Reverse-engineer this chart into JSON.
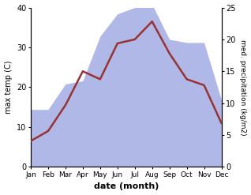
{
  "months": [
    "Jan",
    "Feb",
    "Mar",
    "Apr",
    "May",
    "Jun",
    "Jul",
    "Aug",
    "Sep",
    "Oct",
    "Nov",
    "Dec"
  ],
  "month_indices": [
    0,
    1,
    2,
    3,
    4,
    5,
    6,
    7,
    8,
    9,
    10,
    11
  ],
  "temp": [
    6.5,
    9.0,
    15.5,
    24.0,
    22.0,
    31.0,
    32.0,
    36.5,
    28.5,
    22.0,
    20.5,
    11.0
  ],
  "precip": [
    9.0,
    9.0,
    13.0,
    13.5,
    20.5,
    24.0,
    25.0,
    25.5,
    20.0,
    19.5,
    19.5,
    10.5
  ],
  "temp_color": "#993333",
  "precip_color_fill": "#b0b8e8",
  "left_ylabel": "max temp (C)",
  "right_ylabel": "med. precipitation (kg/m2)",
  "xlabel": "date (month)",
  "ylim_left": [
    0,
    40
  ],
  "ylim_right": [
    0,
    25
  ],
  "yticks_left": [
    0,
    10,
    20,
    30,
    40
  ],
  "yticks_right": [
    0,
    5,
    10,
    15,
    20,
    25
  ],
  "bg_color": "#ffffff",
  "line_width": 1.8
}
